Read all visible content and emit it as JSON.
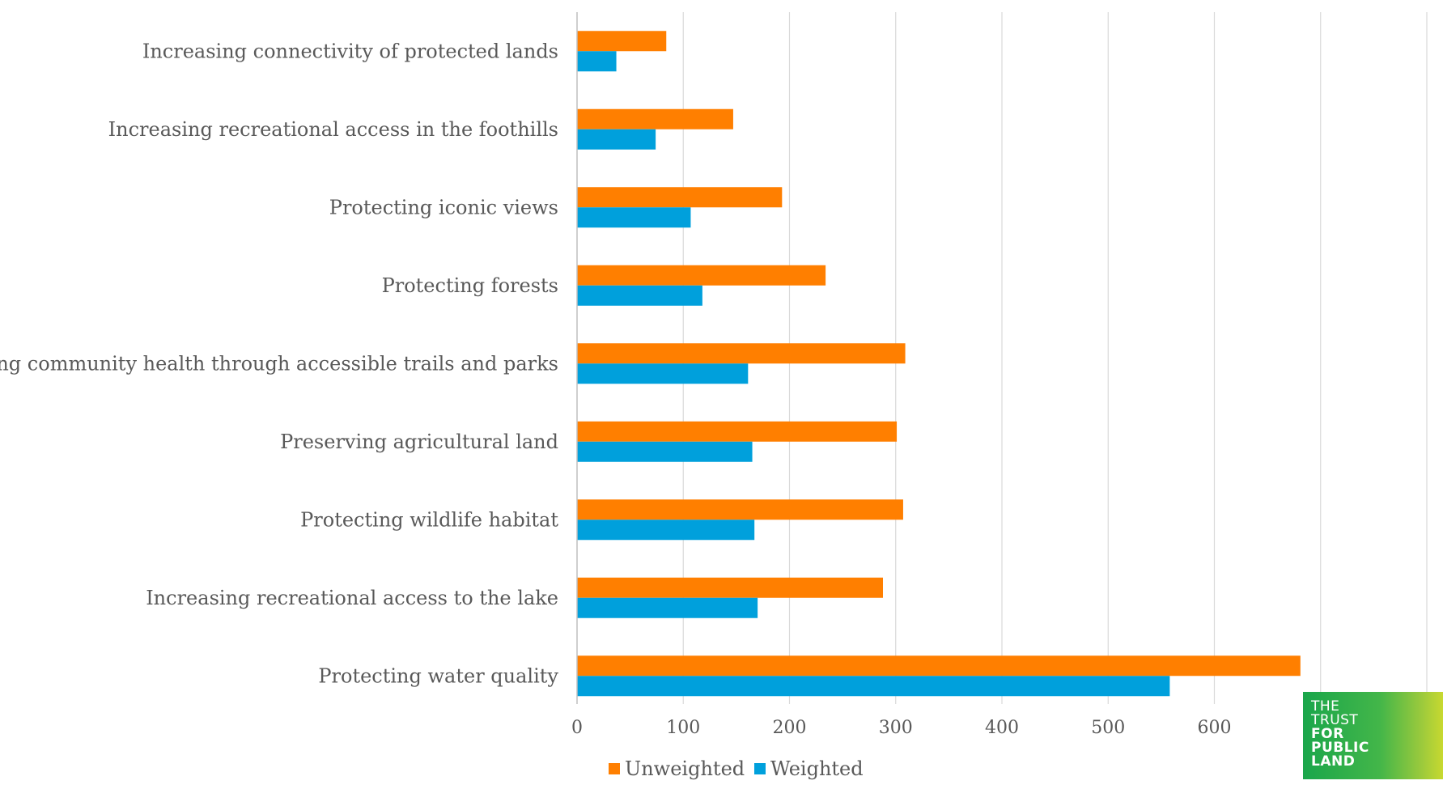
{
  "chart_data": {
    "type": "bar",
    "orientation": "horizontal",
    "categories": [
      "Increasing connectivity of protected lands",
      "Increasing recreational access in the foothills",
      "Protecting iconic views",
      "Protecting forests",
      "Promoting community health through accessible trails and parks",
      "Preserving agricultural land",
      "Protecting wildlife habitat",
      "Increasing recreational access to the lake",
      "Protecting water quality"
    ],
    "series": [
      {
        "name": "Unweighted",
        "color": "#FF7F00",
        "values": [
          84,
          147,
          193,
          234,
          309,
          301,
          307,
          288,
          681
        ]
      },
      {
        "name": "Weighted",
        "color": "#00A0DC",
        "values": [
          37,
          74,
          107,
          118,
          161,
          165,
          167,
          170,
          558
        ]
      }
    ],
    "xlim": [
      0,
      800
    ],
    "xticks": [
      "0",
      "100",
      "200",
      "300",
      "400",
      "500",
      "600",
      "700",
      "800"
    ],
    "grid": true,
    "legend_position": "bottom",
    "title": "",
    "xlabel": "",
    "ylabel": ""
  },
  "logo": {
    "lines": [
      "THE",
      "TRUST",
      "FOR",
      "PUBLIC",
      "LAND"
    ]
  }
}
